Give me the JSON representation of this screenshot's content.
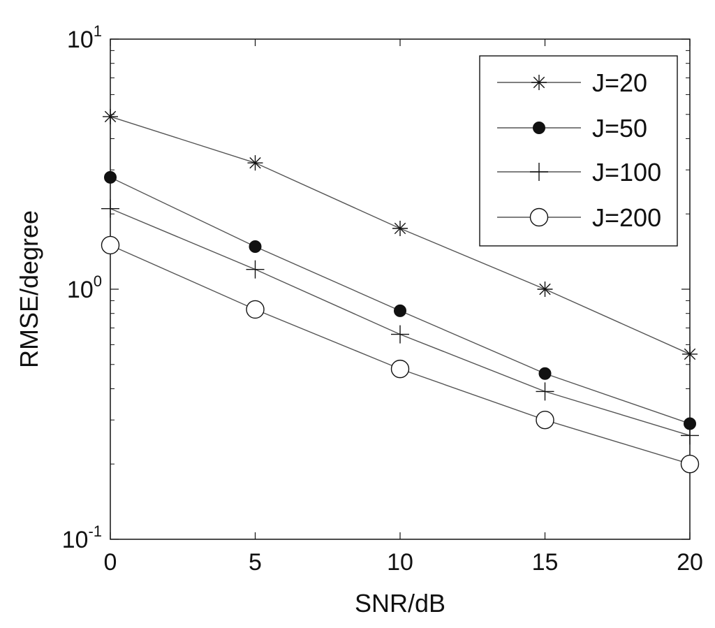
{
  "chart_data": {
    "type": "line",
    "title": "",
    "xlabel": "SNR/dB",
    "ylabel": "RMSE/degree",
    "x": [
      0,
      5,
      10,
      15,
      20
    ],
    "xlim": [
      0,
      20
    ],
    "ylim": [
      0.1,
      10
    ],
    "yscale": "log",
    "grid": false,
    "legend_position": "top-right",
    "x_ticks": [
      "0",
      "5",
      "10",
      "15",
      "20"
    ],
    "y_ticks": [
      {
        "value": 0.1,
        "base": "10",
        "exp": "-1"
      },
      {
        "value": 1,
        "base": "10",
        "exp": "0"
      },
      {
        "value": 10,
        "base": "10",
        "exp": "1"
      }
    ],
    "series": [
      {
        "name": "J=20",
        "marker": "star",
        "values": [
          4.9,
          3.2,
          1.75,
          1.0,
          0.55
        ]
      },
      {
        "name": "J=50",
        "marker": "filled-circle",
        "values": [
          2.8,
          1.48,
          0.82,
          0.46,
          0.29
        ]
      },
      {
        "name": "J=100",
        "marker": "plus",
        "values": [
          2.1,
          1.2,
          0.66,
          0.39,
          0.26
        ]
      },
      {
        "name": "J=200",
        "marker": "open-circle",
        "values": [
          1.5,
          0.83,
          0.48,
          0.3,
          0.2
        ]
      }
    ],
    "colors": {
      "line": "#555555",
      "marker": "#111111",
      "axis": "#111111"
    }
  }
}
